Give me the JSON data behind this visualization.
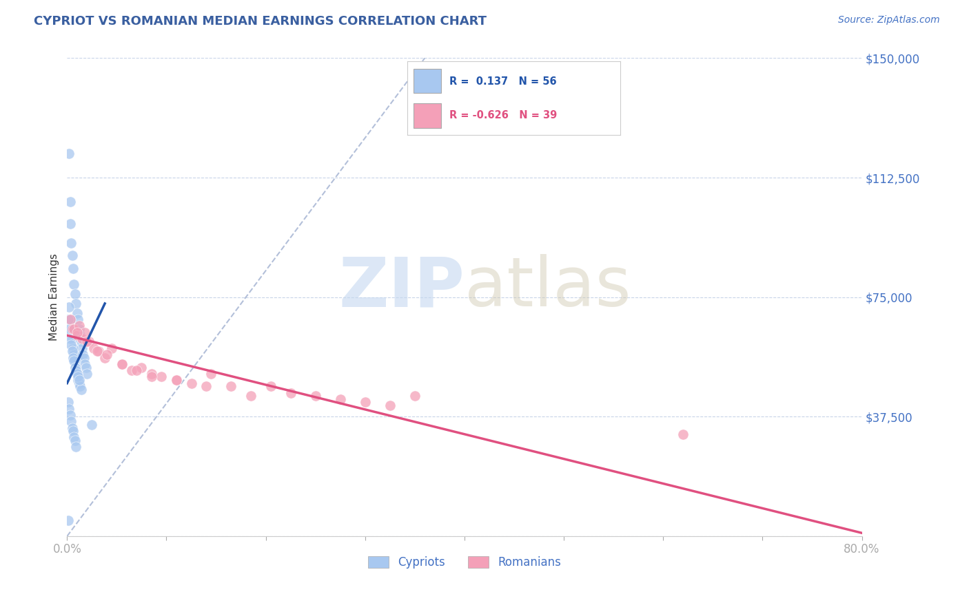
{
  "title": "CYPRIOT VS ROMANIAN MEDIAN EARNINGS CORRELATION CHART",
  "source_text": "Source: ZipAtlas.com",
  "ylabel": "Median Earnings",
  "watermark_zip": "ZIP",
  "watermark_atlas": "atlas",
  "title_color": "#3a5fa0",
  "source_color": "#4472c4",
  "axis_label_color": "#333333",
  "tick_label_color": "#4472c4",
  "background_color": "#ffffff",
  "xmin": 0.0,
  "xmax": 0.8,
  "ymin": 0,
  "ymax": 150000,
  "yticks": [
    0,
    37500,
    75000,
    112500,
    150000
  ],
  "ytick_labels": [
    "",
    "$37,500",
    "$75,000",
    "$112,500",
    "$150,000"
  ],
  "xticks": [
    0.0,
    0.1,
    0.2,
    0.3,
    0.4,
    0.5,
    0.6,
    0.7,
    0.8
  ],
  "xtick_labels": [
    "0.0%",
    "",
    "",
    "",
    "",
    "",
    "",
    "",
    "80.0%"
  ],
  "cypriot_color": "#a8c8f0",
  "romanian_color": "#f4a0b8",
  "cypriot_trend_color": "#2255aa",
  "romanian_trend_color": "#e05080",
  "ref_line_color": "#a0b0d0",
  "grid_color": "#c8d4e8",
  "cypriot_x": [
    0.002,
    0.003,
    0.003,
    0.004,
    0.005,
    0.006,
    0.007,
    0.008,
    0.009,
    0.01,
    0.011,
    0.012,
    0.013,
    0.014,
    0.015,
    0.016,
    0.017,
    0.018,
    0.019,
    0.02,
    0.002,
    0.003,
    0.004,
    0.005,
    0.006,
    0.007,
    0.008,
    0.009,
    0.01,
    0.011,
    0.012,
    0.013,
    0.014,
    0.001,
    0.002,
    0.003,
    0.004,
    0.005,
    0.006,
    0.007,
    0.008,
    0.009,
    0.01,
    0.011,
    0.012,
    0.001,
    0.002,
    0.003,
    0.004,
    0.005,
    0.006,
    0.007,
    0.008,
    0.009,
    0.025,
    0.001
  ],
  "cypriot_y": [
    120000,
    105000,
    98000,
    92000,
    88000,
    84000,
    79000,
    76000,
    73000,
    70000,
    68000,
    65000,
    63000,
    61000,
    59000,
    57000,
    56000,
    54000,
    53000,
    51000,
    72000,
    68000,
    65000,
    62000,
    59000,
    57000,
    55000,
    53000,
    51000,
    49000,
    48000,
    47000,
    46000,
    68000,
    65000,
    62000,
    60000,
    58000,
    56000,
    55000,
    53000,
    52000,
    51000,
    50000,
    49000,
    42000,
    40000,
    38000,
    36000,
    34000,
    33000,
    31000,
    30000,
    28000,
    35000,
    5000
  ],
  "romanian_x": [
    0.003,
    0.005,
    0.007,
    0.01,
    0.012,
    0.015,
    0.018,
    0.022,
    0.027,
    0.032,
    0.038,
    0.045,
    0.055,
    0.065,
    0.075,
    0.085,
    0.095,
    0.11,
    0.125,
    0.145,
    0.165,
    0.185,
    0.205,
    0.225,
    0.25,
    0.275,
    0.3,
    0.325,
    0.01,
    0.02,
    0.03,
    0.04,
    0.055,
    0.07,
    0.085,
    0.11,
    0.14,
    0.62,
    0.35
  ],
  "romanian_y": [
    68000,
    65000,
    65000,
    63000,
    66000,
    62000,
    64000,
    61000,
    59000,
    58000,
    56000,
    59000,
    54000,
    52000,
    53000,
    51000,
    50000,
    49000,
    48000,
    51000,
    47000,
    44000,
    47000,
    45000,
    44000,
    43000,
    42000,
    41000,
    64000,
    61000,
    58000,
    57000,
    54000,
    52000,
    50000,
    49000,
    47000,
    32000,
    44000
  ],
  "cypriot_trend_x": [
    0.0,
    0.038
  ],
  "cypriot_trend_y": [
    48000,
    73000
  ],
  "romanian_trend_x": [
    0.0,
    0.8
  ],
  "romanian_trend_y": [
    63000,
    1000
  ],
  "ref_line_x": [
    0.0,
    0.36
  ],
  "ref_line_y": [
    0,
    150000
  ]
}
